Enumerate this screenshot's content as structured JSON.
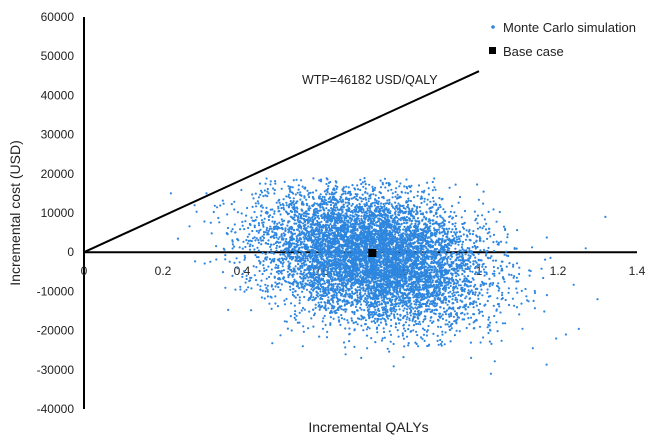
{
  "chart_data": {
    "type": "scatter",
    "xlabel": "Incremental QALYs",
    "ylabel": "Incremental cost (USD)",
    "xlim": [
      0,
      1.4
    ],
    "ylim": [
      -40000,
      60000
    ],
    "x_ticks": [
      "0",
      "0.2",
      "0.4",
      "0.6",
      "0.8",
      "1",
      "1.2",
      "1.4"
    ],
    "y_ticks": [
      "-40000",
      "-30000",
      "-20000",
      "-10000",
      "0",
      "10000",
      "20000",
      "30000",
      "40000",
      "50000",
      "60000"
    ],
    "grid": false,
    "legend_position": "top-right",
    "series": [
      {
        "name": "Monte Carlo simulation",
        "color": "#2E86DE",
        "marker": "dot",
        "distribution": {
          "x_mean": 0.73,
          "x_sd": 0.14,
          "y_mean": -1000,
          "y_sd": 8300,
          "correlation": -0.25,
          "n": 8000
        },
        "x": [
          0.22,
          0.31,
          0.28,
          1.32,
          1.3,
          1.03,
          1.22,
          1.27
        ],
        "y": [
          15000,
          15000,
          12000,
          9000,
          -12000,
          -31000,
          -21000,
          1000
        ]
      },
      {
        "name": "Base case",
        "color": "#000000",
        "marker": "square",
        "x": [
          0.73
        ],
        "y": [
          -200
        ]
      }
    ],
    "annotations": [
      {
        "text": "WTP=46182 USD/QALY",
        "type": "threshold-line",
        "slope": 46182,
        "x_range": [
          0,
          1.0
        ]
      }
    ]
  }
}
